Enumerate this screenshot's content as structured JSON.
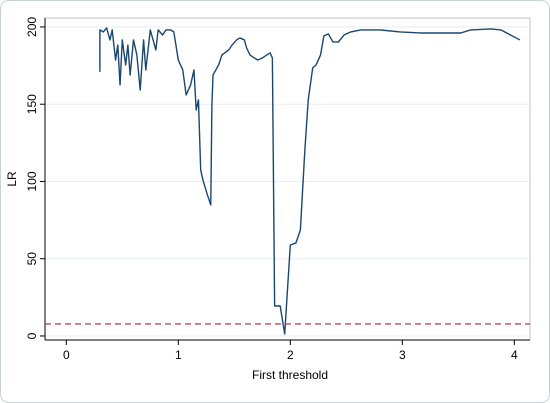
{
  "chart_data": {
    "type": "line",
    "xlabel": "First threshold",
    "ylabel": "LR",
    "x": [
      0.3,
      0.3,
      0.33,
      0.36,
      0.39,
      0.41,
      0.44,
      0.46,
      0.48,
      0.5,
      0.53,
      0.55,
      0.57,
      0.6,
      0.63,
      0.66,
      0.69,
      0.71,
      0.75,
      0.8,
      0.82,
      0.86,
      0.89,
      0.93,
      0.96,
      1.0,
      1.04,
      1.07,
      1.11,
      1.14,
      1.16,
      1.18,
      1.2,
      1.22,
      1.26,
      1.29,
      1.3,
      1.31,
      1.36,
      1.39,
      1.45,
      1.48,
      1.52,
      1.55,
      1.59,
      1.61,
      1.64,
      1.68,
      1.71,
      1.75,
      1.79,
      1.82,
      1.84,
      1.86,
      1.91,
      1.95,
      2.0,
      2.05,
      2.09,
      2.13,
      2.16,
      2.2,
      2.23,
      2.27,
      2.3,
      2.34,
      2.38,
      2.43,
      2.48,
      2.54,
      2.63,
      2.8,
      2.98,
      3.16,
      3.34,
      3.52,
      3.61,
      3.79,
      3.88,
      4.05
    ],
    "series": [
      {
        "name": "LR",
        "color": "#1a476f",
        "values": [
          170.9,
          198.1,
          196.8,
          199.4,
          191.6,
          198.1,
          178.6,
          188.3,
          162.5,
          191.6,
          175.4,
          188.3,
          168.9,
          191.6,
          181.9,
          159.2,
          191.6,
          172.2,
          198.1,
          185.1,
          198.1,
          194.8,
          198.1,
          198.1,
          196.8,
          178.6,
          172.2,
          156.0,
          162.5,
          172.2,
          146.3,
          152.8,
          107.4,
          101.0,
          91.3,
          84.8,
          149.5,
          168.9,
          175.4,
          181.9,
          185.1,
          188.3,
          191.6,
          192.9,
          191.6,
          186.4,
          181.9,
          179.9,
          178.6,
          179.9,
          181.9,
          183.2,
          179.9,
          19.4,
          19.4,
          1.3,
          58.9,
          60.2,
          68.6,
          120.4,
          152.8,
          173.5,
          175.4,
          181.9,
          194.2,
          195.5,
          190.3,
          190.3,
          194.8,
          196.8,
          198.1,
          198.1,
          196.8,
          196.1,
          196.1,
          196.1,
          198.1,
          198.7,
          198.1,
          191.6
        ]
      }
    ],
    "reference_line": {
      "value": 7.8,
      "color": "#b22234"
    },
    "xlim": [
      -0.19,
      4.14
    ],
    "xticks": [
      0,
      1,
      2,
      3,
      4
    ],
    "ylim": [
      -2.6,
      205.8
    ],
    "yticks": [
      0,
      50,
      100,
      150,
      200
    ],
    "grid": true
  }
}
